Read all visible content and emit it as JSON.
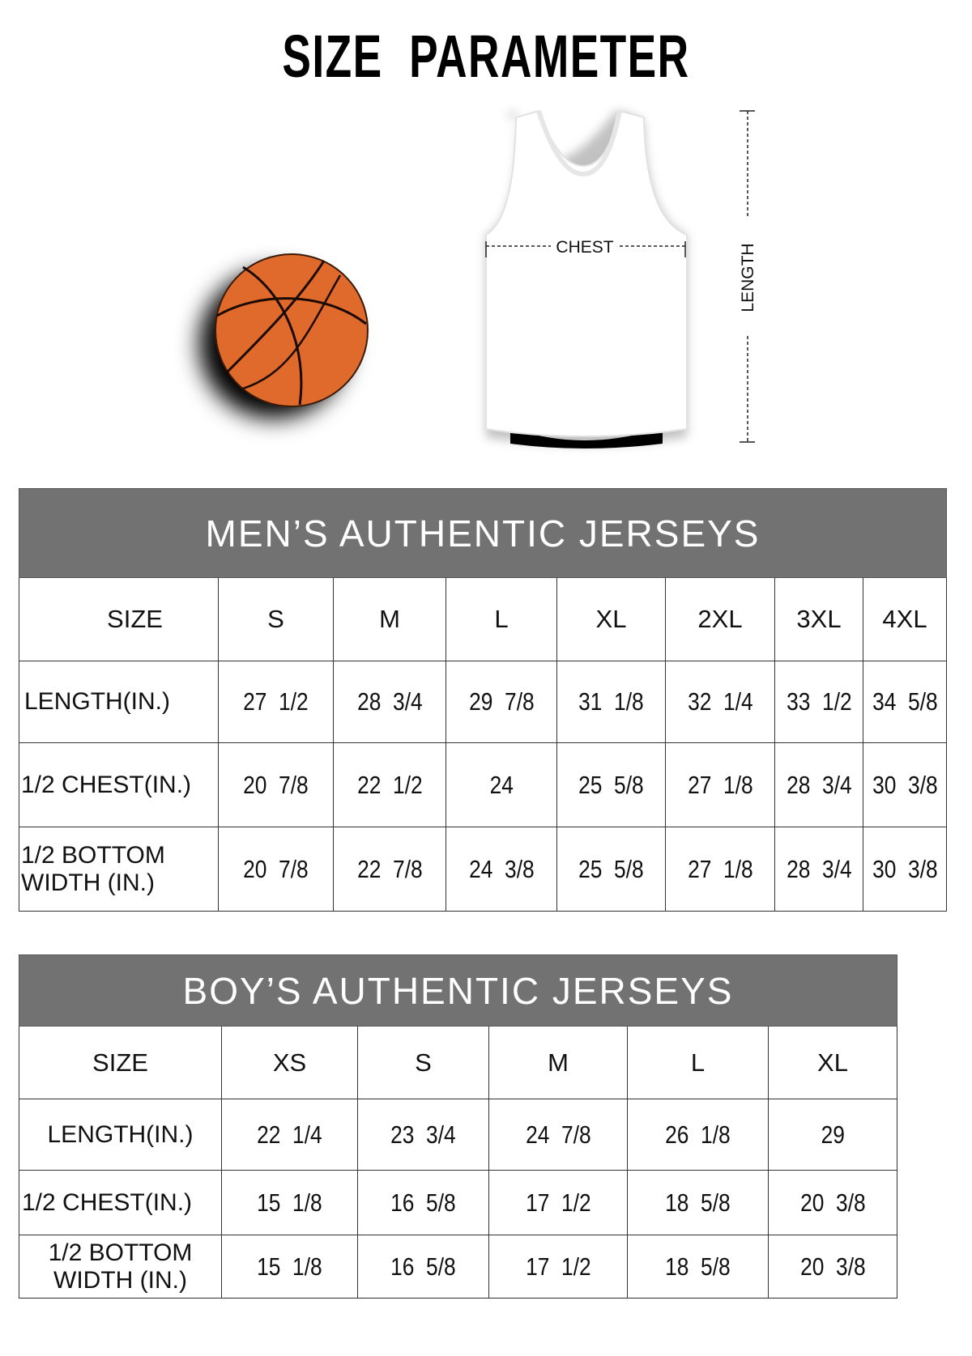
{
  "title": "SIZE  PARAMETER",
  "illustration": {
    "chest_label": "CHEST",
    "length_label": "LENGTH",
    "ball_color": "#E06A2C",
    "jersey_color": "#FFFFFF"
  },
  "header_color": "#727272",
  "mens": {
    "title": "MEN’S AUTHENTIC JERSEYS",
    "size_label": "SIZE",
    "sizes": [
      "S",
      "M",
      "L",
      "XL",
      "2XL",
      "3XL",
      "4XL"
    ],
    "rows": [
      {
        "label": "LENGTH(IN.)",
        "values": [
          "27  1/2",
          "28  3/4",
          "29  7/8",
          "31  1/8",
          "32  1/4",
          "33  1/2",
          "34  5/8"
        ]
      },
      {
        "label": "1/2 CHEST(IN.)",
        "values": [
          "20  7/8",
          "22  1/2",
          "24",
          "25  5/8",
          "27  1/8",
          "28  3/4",
          "30  3/8"
        ]
      },
      {
        "label": "1/2 BOTTOM WIDTH  (IN.)",
        "values": [
          "20  7/8",
          "22  7/8",
          "24  3/8",
          "25  5/8",
          "27  1/8",
          "28  3/4",
          "30  3/8"
        ]
      }
    ]
  },
  "boys": {
    "title": "BOY’S AUTHENTIC JERSEYS",
    "size_label": "SIZE",
    "sizes": [
      "XS",
      "S",
      "M",
      "L",
      "XL"
    ],
    "rows": [
      {
        "label": "LENGTH(IN.)",
        "values": [
          "22  1/4",
          "23  3/4",
          "24  7/8",
          "26  1/8",
          "29"
        ]
      },
      {
        "label": "1/2 CHEST(IN.)",
        "values": [
          "15  1/8",
          "16  5/8",
          "17  1/2",
          "18  5/8",
          "20  3/8"
        ]
      },
      {
        "label": "1/2 BOTTOM WIDTH  (IN.)",
        "values": [
          "15  1/8",
          "16  5/8",
          "17  1/2",
          "18  5/8",
          "20  3/8"
        ]
      }
    ]
  }
}
